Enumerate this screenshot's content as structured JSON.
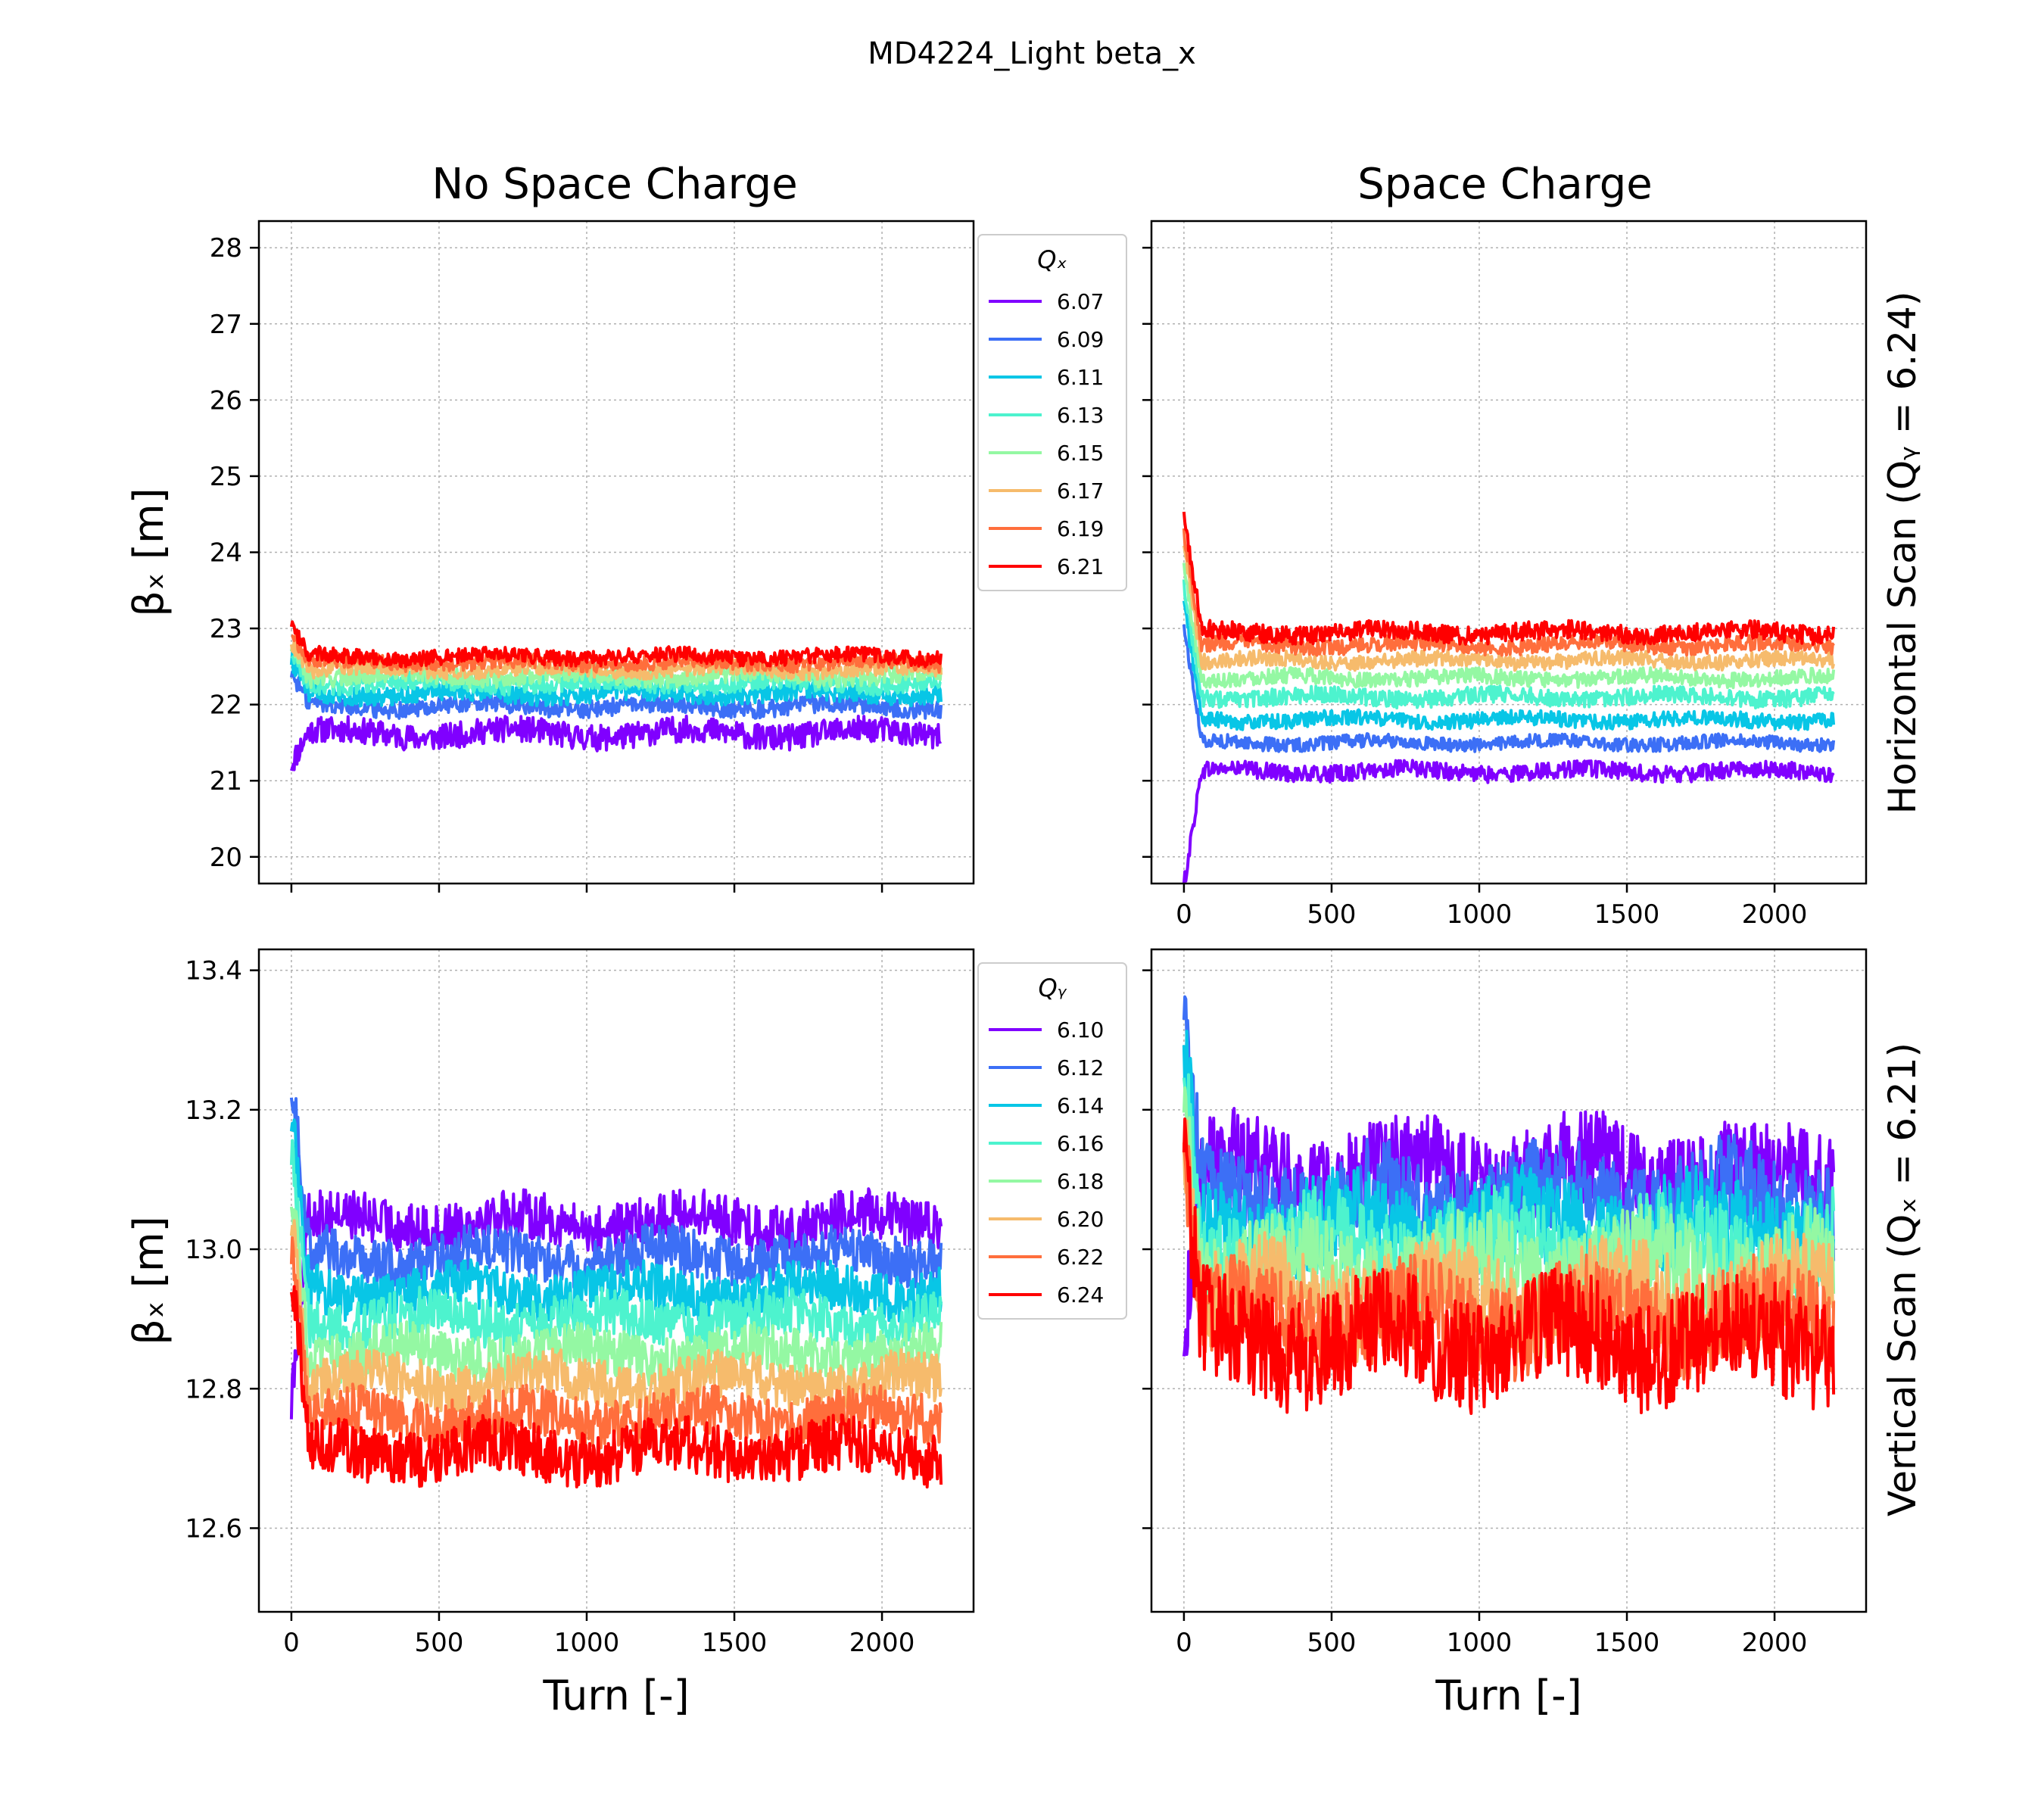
{
  "figure_title": "MD4224_Light beta_x",
  "column_titles": [
    "No Space Charge",
    "Space Charge"
  ],
  "row_labels": [
    "Horizontal Scan (Qᵧ = 6.24)",
    "Vertical Scan (Qₓ = 6.21)"
  ],
  "chart_data": [
    {
      "type": "line",
      "panel": "top-left",
      "title": "No Space Charge",
      "xlabel": "",
      "ylabel": "βₓ [m]",
      "xlim": [
        -110,
        2310
      ],
      "ylim": [
        19.65,
        28.35
      ],
      "yticks": [
        "20",
        "21",
        "22",
        "23",
        "24",
        "25",
        "26",
        "27",
        "28"
      ],
      "xticks": [
        "0",
        "500",
        "1000",
        "1500",
        "2000"
      ],
      "xticks_labeled": false,
      "grid": true,
      "legend": {
        "title": "Qₓ",
        "placement": "outside-right"
      },
      "series": [
        {
          "name": "6.07",
          "mean": 21.62,
          "band": 0.17,
          "color": "#8000ff"
        },
        {
          "name": "6.09",
          "mean": 21.98,
          "band": 0.12,
          "color": "#3c6ff6"
        },
        {
          "name": "6.11",
          "mean": 22.14,
          "band": 0.12,
          "color": "#08c6e6"
        },
        {
          "name": "6.13",
          "mean": 22.28,
          "band": 0.12,
          "color": "#4df3ce"
        },
        {
          "name": "6.15",
          "mean": 22.38,
          "band": 0.12,
          "color": "#94f8a3"
        },
        {
          "name": "6.17",
          "mean": 22.46,
          "band": 0.1,
          "color": "#f6bb6c"
        },
        {
          "name": "6.19",
          "mean": 22.55,
          "band": 0.1,
          "color": "#ff6e3c"
        },
        {
          "name": "6.21",
          "mean": 22.63,
          "band": 0.1,
          "color": "#ff0000"
        }
      ]
    },
    {
      "type": "line",
      "panel": "top-right",
      "title": "Space Charge",
      "xlabel": "",
      "ylabel": "",
      "xlim": [
        -110,
        2310
      ],
      "ylim": [
        19.65,
        28.35
      ],
      "xticks": [
        "0",
        "500",
        "1000",
        "1500",
        "2000"
      ],
      "yticks_labeled": false,
      "grid": true,
      "series": [
        {
          "name": "6.07",
          "mean": 21.12,
          "band": 0.11,
          "color": "#8000ff"
        },
        {
          "name": "6.09",
          "mean": 21.5,
          "band": 0.09,
          "color": "#3c6ff6"
        },
        {
          "name": "6.11",
          "mean": 21.8,
          "band": 0.1,
          "color": "#08c6e6"
        },
        {
          "name": "6.13",
          "mean": 22.1,
          "band": 0.11,
          "color": "#4df3ce"
        },
        {
          "name": "6.15",
          "mean": 22.35,
          "band": 0.1,
          "color": "#94f8a3"
        },
        {
          "name": "6.17",
          "mean": 22.58,
          "band": 0.1,
          "color": "#f6bb6c"
        },
        {
          "name": "6.19",
          "mean": 22.78,
          "band": 0.1,
          "color": "#ff6e3c"
        },
        {
          "name": "6.21",
          "mean": 22.95,
          "band": 0.12,
          "color": "#ff0000"
        }
      ]
    },
    {
      "type": "line",
      "panel": "bottom-left",
      "title": "",
      "xlabel": "Turn [-]",
      "ylabel": "βₓ [m]",
      "xlim": [
        -110,
        2310
      ],
      "ylim": [
        12.48,
        13.43
      ],
      "yticks": [
        "12.6",
        "12.8",
        "13.0",
        "13.2",
        "13.4"
      ],
      "xticks": [
        "0",
        "500",
        "1000",
        "1500",
        "2000"
      ],
      "grid": true,
      "legend": {
        "title": "Qᵧ",
        "placement": "outside-right"
      },
      "series": [
        {
          "name": "6.10",
          "mean": 13.04,
          "band": 0.035,
          "color": "#8000ff"
        },
        {
          "name": "6.12",
          "mean": 12.99,
          "band": 0.035,
          "color": "#3c6ff6"
        },
        {
          "name": "6.14",
          "mean": 12.94,
          "band": 0.035,
          "color": "#08c6e6"
        },
        {
          "name": "6.16",
          "mean": 12.9,
          "band": 0.035,
          "color": "#4df3ce"
        },
        {
          "name": "6.18",
          "mean": 12.85,
          "band": 0.035,
          "color": "#94f8a3"
        },
        {
          "name": "6.20",
          "mean": 12.81,
          "band": 0.035,
          "color": "#f6bb6c"
        },
        {
          "name": "6.22",
          "mean": 12.76,
          "band": 0.035,
          "color": "#ff6e3c"
        },
        {
          "name": "6.24",
          "mean": 12.71,
          "band": 0.04,
          "color": "#ff0000"
        }
      ]
    },
    {
      "type": "line",
      "panel": "bottom-right",
      "title": "",
      "xlabel": "Turn [-]",
      "ylabel": "",
      "xlim": [
        -110,
        2310
      ],
      "ylim": [
        12.48,
        13.43
      ],
      "xticks": [
        "0",
        "500",
        "1000",
        "1500",
        "2000"
      ],
      "yticks_labeled": false,
      "grid": true,
      "series": [
        {
          "name": "6.10",
          "mean": 13.11,
          "band": 0.07,
          "color": "#8000ff"
        },
        {
          "name": "6.12",
          "mean": 13.07,
          "band": 0.07,
          "color": "#3c6ff6"
        },
        {
          "name": "6.14",
          "mean": 13.03,
          "band": 0.07,
          "color": "#08c6e6"
        },
        {
          "name": "6.16",
          "mean": 13.0,
          "band": 0.07,
          "color": "#4df3ce"
        },
        {
          "name": "6.18",
          "mean": 12.97,
          "band": 0.07,
          "color": "#94f8a3"
        },
        {
          "name": "6.20",
          "mean": 12.93,
          "band": 0.07,
          "color": "#f6bb6c"
        },
        {
          "name": "6.22",
          "mean": 12.9,
          "band": 0.07,
          "color": "#ff6e3c"
        },
        {
          "name": "6.24",
          "mean": 12.87,
          "band": 0.08,
          "color": "#ff0000"
        }
      ]
    }
  ]
}
